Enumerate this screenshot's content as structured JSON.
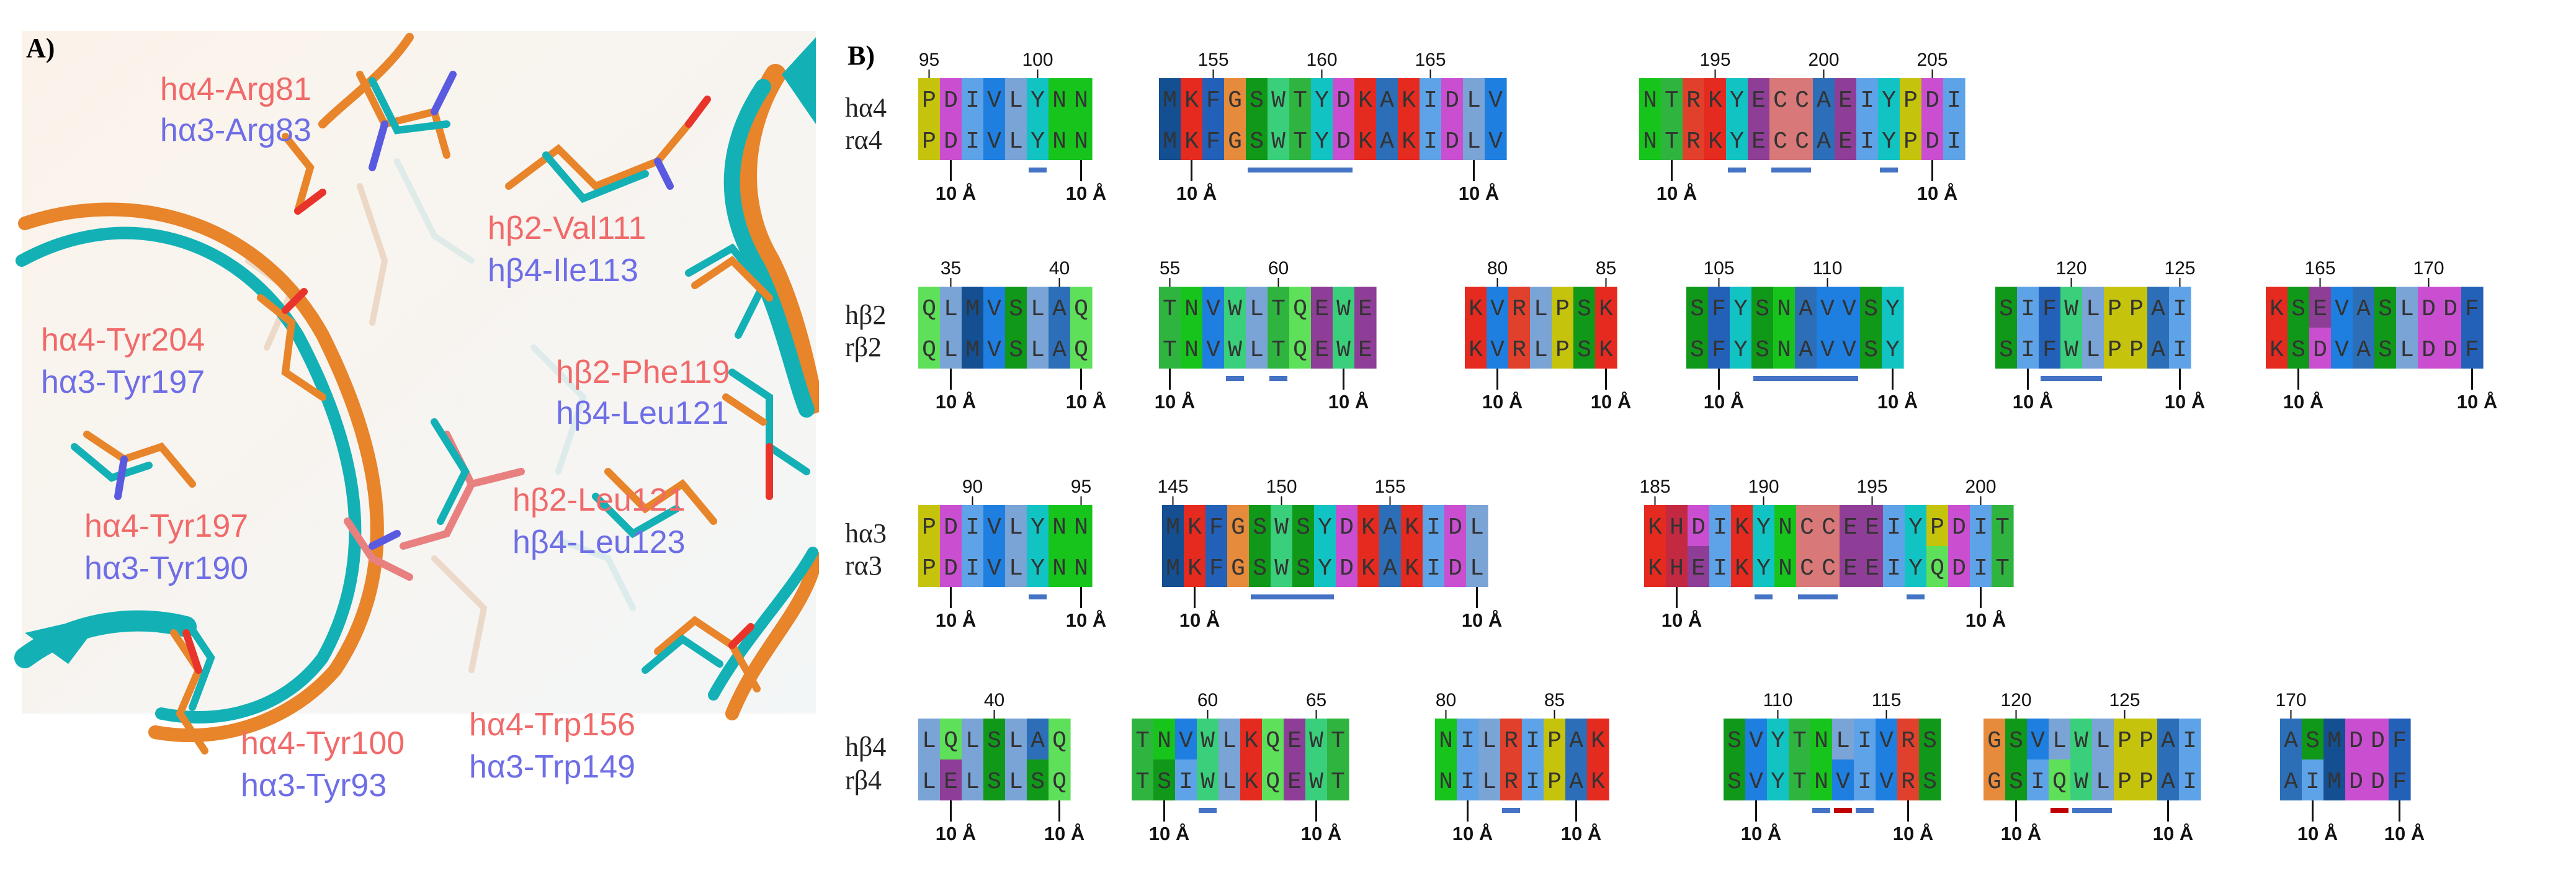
{
  "panel_a": {
    "label": "A)",
    "labels": [
      {
        "text": "hα4-Arg81",
        "color": "red"
      },
      {
        "text": "hα3-Arg83",
        "color": "blue"
      },
      {
        "text": "hβ2-Val111",
        "color": "red"
      },
      {
        "text": "hβ4-Ile113",
        "color": "blue"
      },
      {
        "text": "hα4-Tyr204",
        "color": "red"
      },
      {
        "text": "hα3-Tyr197",
        "color": "blue"
      },
      {
        "text": "hβ2-Phe119",
        "color": "red"
      },
      {
        "text": "hβ4-Leu121",
        "color": "blue"
      },
      {
        "text": "hβ2-Leu121",
        "color": "red"
      },
      {
        "text": "hβ4-Leu123",
        "color": "blue"
      },
      {
        "text": "hα4-Tyr197",
        "color": "red"
      },
      {
        "text": "hα3-Tyr190",
        "color": "blue"
      },
      {
        "text": "hα4-Tyr100",
        "color": "red"
      },
      {
        "text": "hα3-Tyr93",
        "color": "blue"
      },
      {
        "text": "hα4-Trp156",
        "color": "red"
      },
      {
        "text": "hα3-Trp149",
        "color": "blue"
      }
    ]
  },
  "panel_b": {
    "label": "B)",
    "distance_label": "10 Å",
    "rows": [
      {
        "labels": [
          "hα4",
          "rα4"
        ],
        "blocks": [
          {
            "start": 95,
            "h": "PDIVLYNN",
            "r": "PDIVLYNN",
            "ticks": [
              95,
              100
            ],
            "marks": [
              "blue@5"
            ],
            "ang": [
              1,
              7
            ]
          },
          {
            "start": 153,
            "h": "MKFGSWTYDKAKIDLV",
            "r": "MKFGSWTYDKAKIDLV",
            "ticks": [
              155,
              160,
              165
            ],
            "marks": [
              "blue@4-8"
            ],
            "ang": [
              1,
              14
            ]
          },
          {
            "start": 192,
            "h": "NTRKYECCAEIYPDI",
            "r": "NTRKYECCAEIYPDI",
            "ticks": [
              195,
              200,
              205
            ],
            "marks": [
              "blue@4",
              "blue@6-7",
              "blue@11"
            ],
            "ang": [
              1,
              13
            ]
          }
        ]
      },
      {
        "labels": [
          "hβ2",
          "rβ2"
        ],
        "blocks": [
          {
            "start": 34,
            "h": "QLMVSLAQ",
            "r": "QLMVSLAQ",
            "ticks": [
              35,
              40
            ],
            "marks": [],
            "ang": [
              1,
              7
            ]
          },
          {
            "start": 55,
            "h": "TNVWLTQEWE",
            "r": "TNVWLTQEWE",
            "ticks": [
              55,
              60
            ],
            "marks": [
              "blue@3",
              "blue@5"
            ],
            "ang": [
              0,
              8
            ]
          },
          {
            "start": 79,
            "h": "KVRLPSK",
            "r": "KVRLPSK",
            "ticks": [
              80,
              85
            ],
            "marks": [],
            "ang": [
              1,
              6
            ]
          },
          {
            "start": 104,
            "h": "SFYSNAVVSY",
            "r": "SFYSNAVVSY",
            "ticks": [
              105,
              110
            ],
            "marks": [
              "blue@3-7"
            ],
            "ang": [
              1,
              9
            ]
          },
          {
            "start": 117,
            "h": "SIFWLPPAI",
            "r": "SIFWLPPAI",
            "ticks": [
              120,
              125
            ],
            "marks": [
              "blue@2-4"
            ],
            "ang": [
              1,
              8
            ]
          },
          {
            "start": 163,
            "h": "KSEVASLDDF",
            "r": "KSDVASLDDF",
            "ticks": [
              165,
              170
            ],
            "marks": [],
            "ang": [
              1,
              9
            ]
          }
        ]
      },
      {
        "labels": [
          "hα3",
          "rα3"
        ],
        "blocks": [
          {
            "start": 88,
            "h": "PDIVLYNN",
            "r": "PDIVLYNN",
            "ticks": [
              90,
              95
            ],
            "marks": [
              "blue@5"
            ],
            "ang": [
              1,
              7
            ]
          },
          {
            "start": 145,
            "h": "MKFGSWSYDKAKIDL",
            "r": "MKFGSWSYDKAKIDL",
            "ticks": [
              145,
              150,
              155
            ],
            "marks": [
              "blue@4-7"
            ],
            "ang": [
              1,
              14
            ]
          },
          {
            "start": 185,
            "h": "KHDIKYNCCEEIYPDIT",
            "r": "KHEIKYNCCEEIYQDIT",
            "ticks": [
              185,
              190,
              195,
              200
            ],
            "marks": [
              "blue@5",
              "blue@7-8",
              "blue@12"
            ],
            "ang": [
              1,
              15
            ]
          }
        ]
      },
      {
        "labels": [
          "hβ4",
          "rβ4"
        ],
        "blocks": [
          {
            "start": 37,
            "h": "LQLSLAQ",
            "r": "LELSLSQ",
            "ticks": [
              40
            ],
            "marks": [],
            "ang": [
              1,
              6
            ]
          },
          {
            "start": 57,
            "h": "TNVWLKQEWT",
            "r": "TSIWLKQEWT",
            "ticks": [
              60,
              65
            ],
            "marks": [
              "blue@3"
            ],
            "ang": [
              1,
              8
            ]
          },
          {
            "start": 80,
            "h": "NILRIPAK",
            "r": "NILRIPAK",
            "ticks": [
              80,
              85
            ],
            "marks": [
              "blue@3"
            ],
            "ang": [
              1,
              6
            ]
          },
          {
            "start": 108,
            "h": "SVYTNLIVRS",
            "r": "SVYTNVIVRS",
            "ticks": [
              110,
              115
            ],
            "marks": [
              "blue@4",
              "red@5",
              "blue@6"
            ],
            "ang": [
              1,
              8
            ]
          },
          {
            "start": 119,
            "h": "GSVLWLPPAI",
            "r": "GSIQWLPPAI",
            "ticks": [
              120,
              125
            ],
            "marks": [
              "red@3",
              "blue@4-5"
            ],
            "ang": [
              1,
              8
            ]
          },
          {
            "start": 170,
            "h": "ASMDDF",
            "r": "AIMDDF",
            "ticks": [
              170
            ],
            "marks": [],
            "ang": [
              1,
              5
            ]
          }
        ]
      }
    ]
  },
  "colors": {
    "P": "#c5c30c",
    "D": "#c94fd0",
    "E": "#8e3e96",
    "I": "#5ea3e8",
    "V": "#1e7fe0",
    "L": "#7aa3d6",
    "Y": "#12c3c3",
    "N": "#17c41c",
    "M": "#144f92",
    "K": "#e52a20",
    "F": "#2361b8",
    "G": "#e68a3c",
    "S": "#109818",
    "W": "#3acf7a",
    "T": "#30b440",
    "C": "#d87878",
    "A": "#2c6fb8",
    "Q": "#5fe05a",
    "R": "#e0402c",
    "H": "#c32a42",
    "mark_blue": "#4472c4",
    "mark_red": "#c00000",
    "label_red": "#f06a6a",
    "label_blue": "#6e6ee6",
    "ribbon_orange": "#e8842a",
    "ribbon_teal": "#13b1b5"
  }
}
